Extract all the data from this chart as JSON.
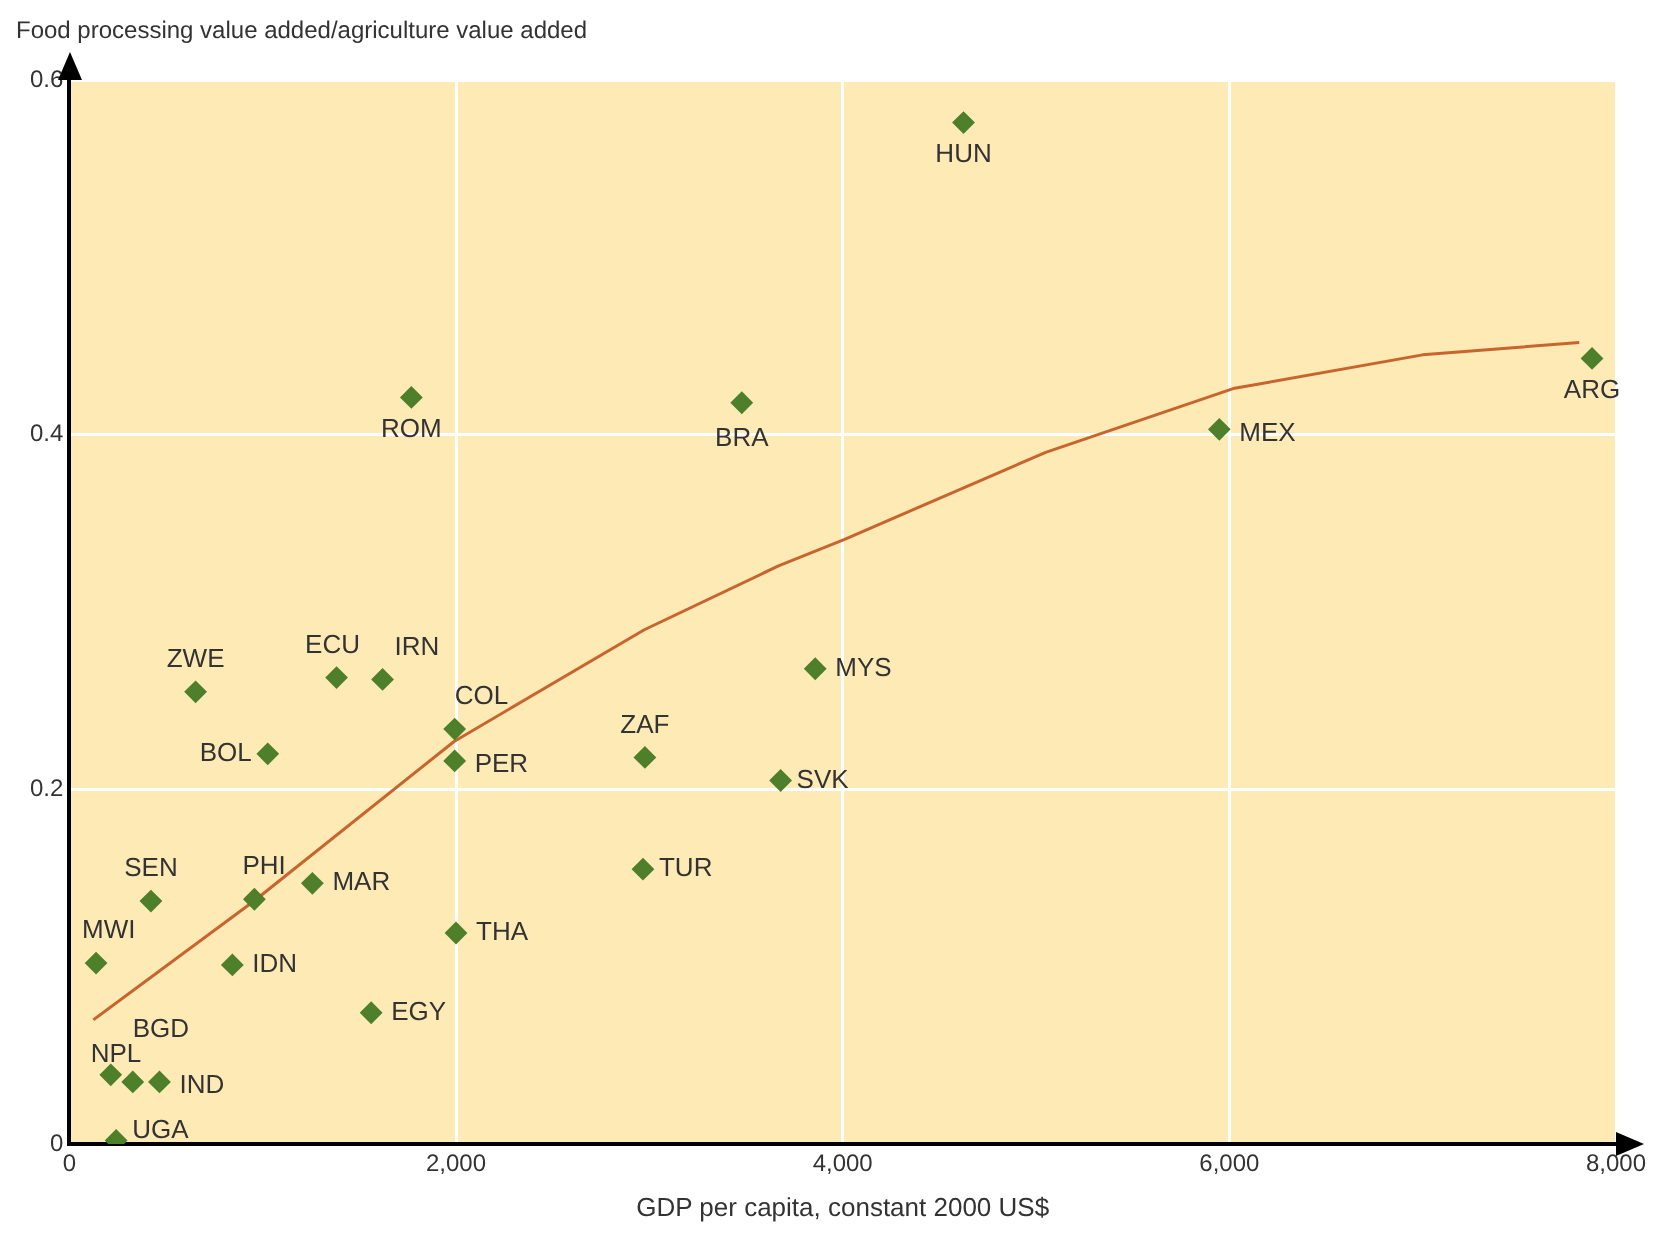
{
  "chart_data": {
    "type": "scatter",
    "ylabel": "Food processing value added/agriculture value added",
    "xlabel": "GDP per capita, constant 2000 US$",
    "series": [
      {
        "color": "#4e7f2a",
        "marker": "diamond",
        "x": [
          4625,
          1769,
          3478,
          7876,
          5948,
          3858,
          3679,
          2977,
          2967,
          1382,
          1620,
          1993,
          1993,
          653,
          1026,
          422,
          957,
          1257,
          2000,
          843,
          1561,
          138,
          214,
          328,
          466,
          242
        ],
        "values": [
          0.576,
          0.421,
          0.418,
          0.443,
          0.403,
          0.268,
          0.205,
          0.218,
          0.155,
          0.263,
          0.262,
          0.234,
          0.216,
          0.255,
          0.22,
          0.137,
          0.138,
          0.147,
          0.119,
          0.101,
          0.074,
          0.102,
          0.039,
          0.035,
          0.035,
          0.002
        ]
      },
      {
        "type": "line",
        "color": "#c8642d",
        "marker": "none",
        "x": [
          124,
          943,
          1990,
          2974,
          3668,
          4010,
          5050,
          6020,
          7000,
          7810
        ],
        "values": [
          0.07,
          0.136,
          0.227,
          0.29,
          0.326,
          0.341,
          0.39,
          0.426,
          0.445,
          0.452
        ]
      }
    ],
    "annotations": [
      {
        "text": "HUN",
        "x": 4625,
        "y": 0.576
      },
      {
        "text": "ROM",
        "x": 1769,
        "y": 0.421
      },
      {
        "text": "BRA",
        "x": 3478,
        "y": 0.418
      },
      {
        "text": "ARG",
        "x": 7876,
        "y": 0.443
      },
      {
        "text": "MEX",
        "x": 5948,
        "y": 0.403
      },
      {
        "text": "MYS",
        "x": 3858,
        "y": 0.268
      },
      {
        "text": "SVK",
        "x": 3679,
        "y": 0.205
      },
      {
        "text": "ZAF",
        "x": 2977,
        "y": 0.218
      },
      {
        "text": "TUR",
        "x": 2967,
        "y": 0.155
      },
      {
        "text": "ECU",
        "x": 1382,
        "y": 0.263
      },
      {
        "text": "IRN",
        "x": 1620,
        "y": 0.262
      },
      {
        "text": "COL",
        "x": 1993,
        "y": 0.234
      },
      {
        "text": "PER",
        "x": 1993,
        "y": 0.216
      },
      {
        "text": "ZWE",
        "x": 653,
        "y": 0.255
      },
      {
        "text": "BOL",
        "x": 1026,
        "y": 0.22
      },
      {
        "text": "SEN",
        "x": 422,
        "y": 0.137
      },
      {
        "text": "PHI",
        "x": 957,
        "y": 0.138
      },
      {
        "text": "MAR",
        "x": 1257,
        "y": 0.147
      },
      {
        "text": "THA",
        "x": 2000,
        "y": 0.119
      },
      {
        "text": "IDN",
        "x": 843,
        "y": 0.101
      },
      {
        "text": "EGY",
        "x": 1561,
        "y": 0.074
      },
      {
        "text": "MWI",
        "x": 138,
        "y": 0.102
      },
      {
        "text": "NPL",
        "x": 214,
        "y": 0.039
      },
      {
        "text": "BGD",
        "x": 328,
        "y": 0.035
      },
      {
        "text": "IND",
        "x": 466,
        "y": 0.035
      },
      {
        "text": "UGA",
        "x": 242,
        "y": 0.002
      }
    ],
    "xlim": [
      0,
      8000
    ],
    "xticks": [
      0,
      {
        "value": 2000,
        "label": "2,000"
      },
      {
        "value": 4000,
        "label": "4,000"
      },
      {
        "value": 6000,
        "label": "6,000"
      },
      {
        "value": 8000,
        "label": "8,000"
      }
    ],
    "ylim": [
      0,
      0.6
    ],
    "yticks": [
      0,
      0.2,
      0.4,
      0.6
    ],
    "grid": true,
    "legend": false
  }
}
